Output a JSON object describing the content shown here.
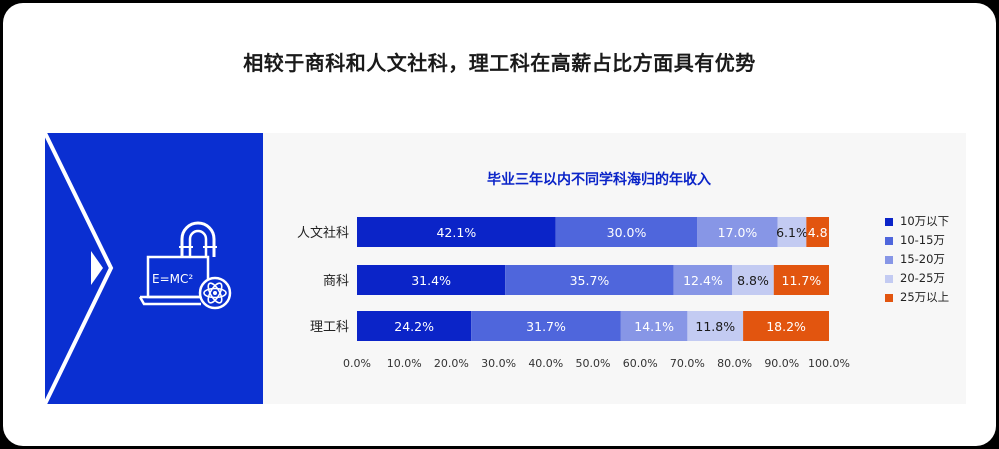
{
  "headline": "相较于商科和人文社科，理工科在高薪占比方面具有优势",
  "icon": {
    "name": "physics-magnet-laptop-icon",
    "formula": "E=MC²"
  },
  "chart_data": {
    "type": "bar",
    "orientation": "horizontal",
    "stacked": true,
    "title": "毕业三年以内不同学科海归的年收入",
    "categories": [
      "人文社科",
      "商科",
      "理工科"
    ],
    "series": [
      {
        "name": "10万以下",
        "color": "#0b24c8",
        "values": [
          42.1,
          31.4,
          24.2
        ],
        "labels": [
          "42.1%",
          "31.4%",
          "24.2%"
        ]
      },
      {
        "name": "10-15万",
        "color": "#4f66dc",
        "values": [
          30.0,
          35.7,
          31.7
        ],
        "labels": [
          "30.0%",
          "35.7%",
          "31.7%"
        ]
      },
      {
        "name": "15-20万",
        "color": "#8796e6",
        "values": [
          17.0,
          12.4,
          14.1
        ],
        "labels": [
          "17.0%",
          "12.4%",
          "14.1%"
        ]
      },
      {
        "name": "20-25万",
        "color": "#c3cbf2",
        "values": [
          6.1,
          8.8,
          11.8
        ],
        "labels": [
          "6.1%",
          "8.8%",
          "11.8%"
        ]
      },
      {
        "name": "25万以上",
        "color": "#e2550f",
        "values": [
          4.8,
          11.7,
          18.2
        ],
        "labels": [
          "4.8",
          "11.7%",
          "18.2%"
        ]
      }
    ],
    "xlim": [
      0,
      100
    ],
    "xticks": [
      "0.0%",
      "10.0%",
      "20.0%",
      "30.0%",
      "40.0%",
      "50.0%",
      "60.0%",
      "70.0%",
      "80.0%",
      "90.0%",
      "100.0%"
    ],
    "grid": false,
    "legend": "right"
  }
}
